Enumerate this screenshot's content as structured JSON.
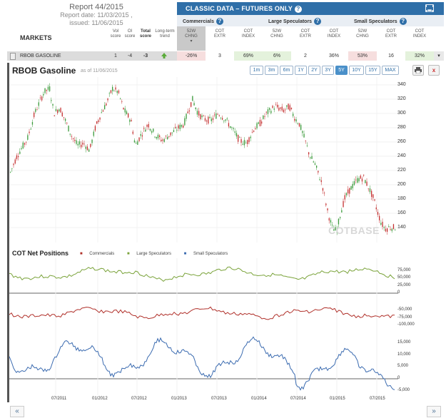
{
  "report": {
    "title": "Report 44/2015",
    "date": "Report date: 11/03/2015 ,",
    "issued": "issued: 11/06/2015"
  },
  "classic": {
    "title": "CLASSIC DATA – FUTURES ONLY"
  },
  "groups": {
    "commercials": "Commercials",
    "large": "Large Speculators",
    "small": "Small Speculators"
  },
  "headers": {
    "markets": "MARKETS",
    "vol": [
      "Vol",
      "score"
    ],
    "oi": [
      "OI",
      "score"
    ],
    "total": [
      "Total",
      "score"
    ],
    "trend": [
      "Long-term",
      "trend"
    ],
    "chng": [
      "52W",
      "CHNG"
    ],
    "extr": [
      "COT",
      "EXTR"
    ],
    "index": [
      "COT",
      "INDEX"
    ]
  },
  "row": {
    "market": "RBOB GASOLINE",
    "vol": "1",
    "oi": "-4",
    "total": "-3",
    "comm_chng": "-26%",
    "comm_extr": "3",
    "comm_index": "69%",
    "large_chng": "6%",
    "large_extr": "2",
    "large_index": "36%",
    "small_chng": "53%",
    "small_extr": "16",
    "small_index": "32%"
  },
  "chart": {
    "title": "RBOB Gasoline",
    "asof": "as of 11/06/2015",
    "zoom": [
      "1m",
      "3m",
      "6m",
      "1Y",
      "2Y",
      "3Y",
      "5Y",
      "10Y",
      "15Y",
      "MAX"
    ],
    "zoom_selected": "5Y",
    "price_axis": [
      "340",
      "320",
      "300",
      "280",
      "260",
      "240",
      "220",
      "200",
      "180",
      "160",
      "140"
    ],
    "watermark": "COTBASE",
    "x_labels": [
      "07/2011",
      "01/2012",
      "07/2012",
      "01/2013",
      "07/2013",
      "01/2014",
      "07/2014",
      "01/2015",
      "07/2015"
    ]
  },
  "cot": {
    "title": "COT Net Positions",
    "legend": [
      "Commercials",
      "Large Speculators",
      "Small Speculators"
    ],
    "large_axis": [
      "75,000",
      "50,000",
      "25,000",
      "0"
    ],
    "comm_axis": [
      "-50,000",
      "-75,000",
      "-100,000"
    ],
    "small_axis": [
      "15,000",
      "10,000",
      "5,000",
      "0",
      "-5,000"
    ]
  },
  "colors": {
    "commercials": "#b0302a",
    "large": "#7aa33a",
    "small": "#3b6bb0",
    "header": "#2f6fa8",
    "up": "#3a9a3a",
    "down": "#c43030"
  },
  "nav": {
    "prev": "«",
    "next": "»"
  }
}
